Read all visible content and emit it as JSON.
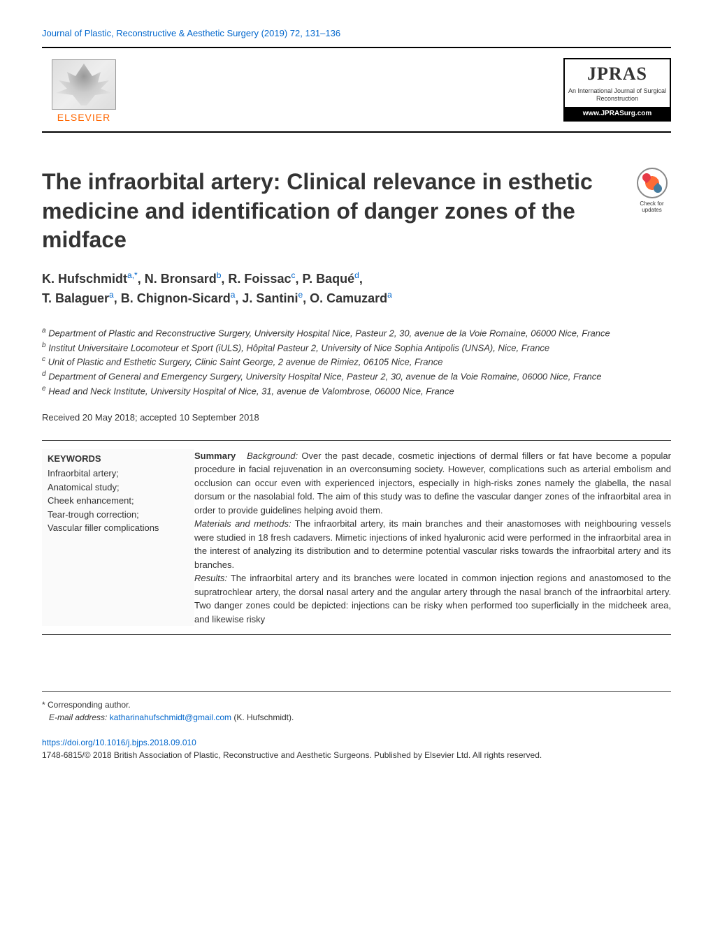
{
  "header": {
    "journal_link": "Journal of Plastic, Reconstructive & Aesthetic Surgery (2019) 72, 131–136",
    "publisher_logo_text": "ELSEVIER",
    "journal_logo": {
      "main": "JPRAS",
      "sub": "An International Journal of Surgical Reconstruction",
      "url": "www.JPRASurg.com"
    }
  },
  "check_updates": "Check for updates",
  "title": "The infraorbital artery: Clinical relevance in esthetic medicine and identification of danger zones of the midface",
  "authors_line1": "K. Hufschmidt",
  "authors_sup1": "a,",
  "authors_star": "*",
  "authors_line1b": ", N. Bronsard",
  "authors_sup2": "b",
  "authors_line1c": ", R. Foissac",
  "authors_sup3": "c",
  "authors_line1d": ", P. Baqué",
  "authors_sup4": "d",
  "authors_line1e": ",",
  "authors_line2a": "T. Balaguer",
  "authors_sup5": "a",
  "authors_line2b": ", B. Chignon-Sicard",
  "authors_sup6": "a",
  "authors_line2c": ", J. Santini",
  "authors_sup7": "e",
  "authors_line2d": ", O. Camuzard",
  "authors_sup8": "a",
  "affiliations": {
    "a": "Department of Plastic and Reconstructive Surgery, University Hospital Nice, Pasteur 2, 30, avenue de la Voie Romaine, 06000 Nice, France",
    "b": "Institut Universitaire Locomoteur et Sport (iULS), Hôpital Pasteur 2, University of Nice Sophia Antipolis (UNSA), Nice, France",
    "c": "Unit of Plastic and Esthetic Surgery, Clinic Saint George, 2 avenue de Rimiez, 06105 Nice, France",
    "d": "Department of General and Emergency Surgery, University Hospital Nice, Pasteur 2, 30, avenue de la Voie Romaine, 06000 Nice, France",
    "e": "Head and Neck Institute, University Hospital of Nice, 31, avenue de Valombrose, 06000 Nice, France"
  },
  "received": "Received 20 May 2018; accepted 10 September 2018",
  "keywords": {
    "title": "KEYWORDS",
    "items": "Infraorbital artery;\nAnatomical study;\nCheek enhancement;\nTear-trough correction;\nVascular filler complications"
  },
  "summary": {
    "label": "Summary",
    "background_label": "Background:",
    "background": " Over the past decade, cosmetic injections of dermal fillers or fat have become a popular procedure in facial rejuvenation in an overconsuming society. However, complications such as arterial embolism and occlusion can occur even with experienced injectors, especially in high-risks zones namely the glabella, the nasal dorsum or the nasolabial fold. The aim of this study was to define the vascular danger zones of the infraorbital area in order to provide guidelines helping avoid them.",
    "materials_label": "Materials and methods:",
    "materials": " The infraorbital artery, its main branches and their anastomoses with neighbouring vessels were studied in 18 fresh cadavers. Mimetic injections of inked hyaluronic acid were performed in the infraorbital area in the interest of analyzing its distribution and to determine potential vascular risks towards the infraorbital artery and its branches.",
    "results_label": "Results:",
    "results": " The infraorbital artery and its branches were located in common injection regions and anastomosed to the supratrochlear artery, the dorsal nasal artery and the angular artery through the nasal branch of the infraorbital artery. Two danger zones could be depicted: injections can be risky when performed too superficially in the midcheek area, and likewise risky"
  },
  "footer": {
    "corresponding_label": "* Corresponding author.",
    "email_label": "E-mail address:",
    "email": "katharinahufschmidt@gmail.com",
    "email_name": " (K. Hufschmidt).",
    "doi": "https://doi.org/10.1016/j.bjps.2018.09.010",
    "copyright": "1748-6815/© 2018 British Association of Plastic, Reconstructive and Aesthetic Surgeons. Published by Elsevier Ltd. All rights reserved."
  }
}
